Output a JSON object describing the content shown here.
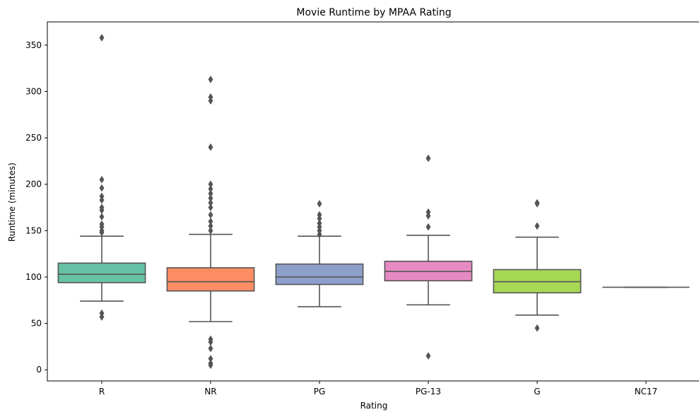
{
  "chart_data": {
    "type": "box",
    "title": "Movie Runtime by MPAA Rating",
    "xlabel": "Rating",
    "ylabel": "Runtime (minutes)",
    "ylim": [
      -12,
      375
    ],
    "yticks": [
      0,
      50,
      100,
      150,
      200,
      250,
      300,
      350
    ],
    "grid": false,
    "legend": "none",
    "categories": [
      "R",
      "NR",
      "PG",
      "PG-13",
      "G",
      "NC17"
    ],
    "boxes": [
      {
        "category": "R",
        "color": "#66c2a5",
        "whisker_low": 74,
        "q1": 94,
        "median": 103,
        "q3": 115,
        "whisker_high": 144,
        "outliers": [
          358,
          205,
          196,
          187,
          183,
          175,
          172,
          165,
          157,
          154,
          150,
          148,
          61,
          57
        ]
      },
      {
        "category": "NR",
        "color": "#fc8d62",
        "whisker_low": 52,
        "q1": 85,
        "median": 95,
        "q3": 110,
        "whisker_high": 146,
        "outliers": [
          313,
          294,
          290,
          240,
          200,
          195,
          190,
          185,
          180,
          175,
          167,
          160,
          155,
          150,
          33,
          30,
          23,
          12,
          7,
          5
        ]
      },
      {
        "category": "PG",
        "color": "#8da0cb",
        "whisker_low": 68,
        "q1": 92,
        "median": 100,
        "q3": 114,
        "whisker_high": 144,
        "outliers": [
          179,
          167,
          163,
          158,
          154,
          150,
          146
        ]
      },
      {
        "category": "PG-13",
        "color": "#e78ac3",
        "whisker_low": 70,
        "q1": 96,
        "median": 106,
        "q3": 117,
        "whisker_high": 145,
        "outliers": [
          228,
          170,
          166,
          154,
          15
        ]
      },
      {
        "category": "G",
        "color": "#a6d854",
        "whisker_low": 59,
        "q1": 83,
        "median": 95,
        "q3": 108,
        "whisker_high": 143,
        "outliers": [
          180,
          179,
          155,
          45
        ]
      },
      {
        "category": "NC17",
        "color": "#ffd92f",
        "whisker_low": 89,
        "q1": 89,
        "median": 89,
        "q3": 89,
        "whisker_high": 89,
        "outliers": []
      }
    ]
  }
}
